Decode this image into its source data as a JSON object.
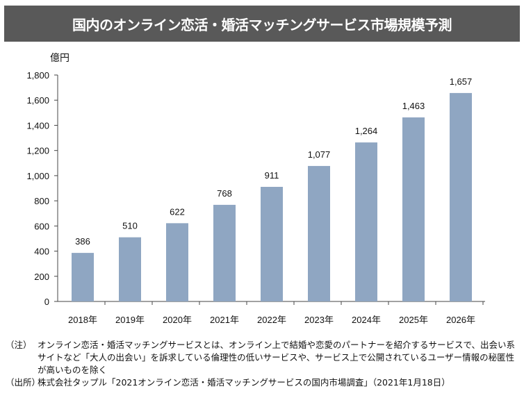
{
  "chart_data": {
    "type": "bar",
    "title": "国内のオンライン恋活・婚活マッチングサービス市場規模予測",
    "ylabel": "億円",
    "xlabel": "",
    "categories": [
      "2018年",
      "2019年",
      "2020年",
      "2021年",
      "2022年",
      "2023年",
      "2024年",
      "2025年",
      "2026年"
    ],
    "values": [
      386,
      510,
      622,
      768,
      911,
      1077,
      1264,
      1463,
      1657
    ],
    "data_labels": [
      "386",
      "510",
      "622",
      "768",
      "911",
      "1,077",
      "1,264",
      "1,463",
      "1,657"
    ],
    "ylim": [
      0,
      1800
    ],
    "yticks": [
      0,
      200,
      400,
      600,
      800,
      1000,
      1200,
      1400,
      1600,
      1800
    ],
    "ytick_labels": [
      "0",
      "200",
      "400",
      "600",
      "800",
      "1,000",
      "1,200",
      "1,400",
      "1,600",
      "1,800"
    ],
    "grid": false,
    "bar_color": "#8FA6C2"
  },
  "notes": {
    "note_label": "（注）",
    "note_text": "オンライン恋活・婚活マッチングサービスとは、オンライン上で結婚や恋愛のパートナーを紹介するサービスで、出会い系サイトなど「大人の出会い」を訴求している倫理性の低いサービスや、サービス上で公開されているユーザー情報の秘匿性が高いものを除く",
    "source_label": "（出所）",
    "source_text": "株式会社タップル「2021オンライン恋活・婚活マッチングサービスの国内市場調査」（2021年1月18日）"
  }
}
